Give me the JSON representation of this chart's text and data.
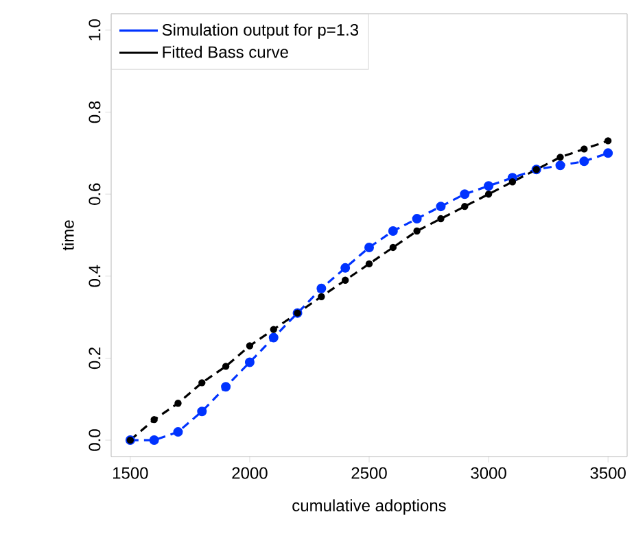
{
  "chart_data": {
    "type": "line",
    "xlabel": "cumulative adoptions",
    "ylabel": "time",
    "x": [
      1500,
      1600,
      1700,
      1800,
      1900,
      2000,
      2100,
      2200,
      2300,
      2400,
      2500,
      2600,
      2700,
      2800,
      2900,
      3000,
      3100,
      3200,
      3300,
      3400,
      3500
    ],
    "series": [
      {
        "name": "Simulation output for p=1.3",
        "color": "#0033ff",
        "values": [
          0,
          0,
          0.02,
          0.07,
          0.13,
          0.19,
          0.25,
          0.31,
          0.37,
          0.42,
          0.47,
          0.51,
          0.54,
          0.57,
          0.6,
          0.62,
          0.64,
          0.66,
          0.67,
          0.68,
          0.7
        ]
      },
      {
        "name": "Fitted Bass curve",
        "color": "#000000",
        "values": [
          0,
          0.05,
          0.09,
          0.14,
          0.18,
          0.23,
          0.27,
          0.31,
          0.35,
          0.39,
          0.43,
          0.47,
          0.51,
          0.54,
          0.57,
          0.6,
          0.63,
          0.66,
          0.69,
          0.71,
          0.73
        ]
      }
    ],
    "xlim": [
      1420,
      3580
    ],
    "ylim": [
      -0.04,
      1.04
    ],
    "xticks": [
      1500,
      2000,
      2500,
      3000,
      3500
    ],
    "yticks": [
      {
        "value": 0,
        "label": "0.0"
      },
      {
        "value": 0.2,
        "label": "0.2"
      },
      {
        "value": 0.4,
        "label": "0.4"
      },
      {
        "value": 0.6,
        "label": "0.6"
      },
      {
        "value": 0.8,
        "label": "0.8"
      },
      {
        "value": 1,
        "label": "1.0"
      }
    ],
    "legend": "top left",
    "marker": "circle",
    "line_style": "dashed",
    "grid": false
  }
}
